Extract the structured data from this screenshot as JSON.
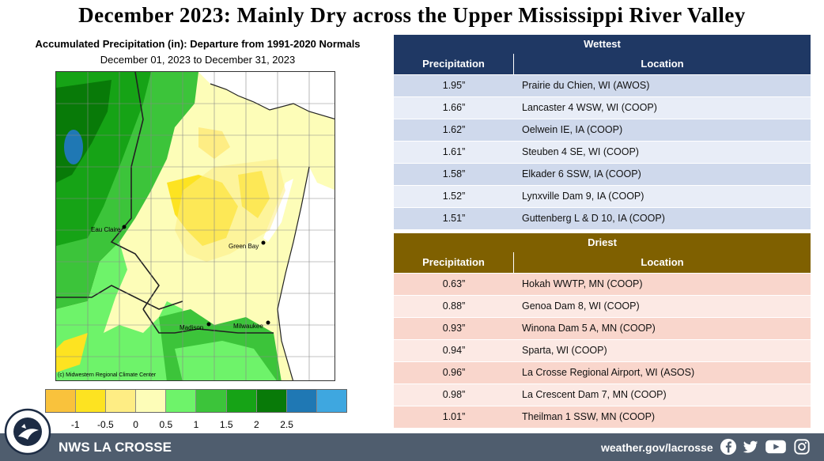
{
  "title": "December 2023:  Mainly Dry across the Upper Mississippi River Valley",
  "map": {
    "title": "Accumulated Precipitation (in): Departure from 1991-2020 Normals",
    "date_range": "December 01, 2023 to December 31, 2023",
    "credit": "(c) Midwestern Regional Climate Center",
    "cities": [
      "Eau Claire",
      "Green Bay",
      "Madison",
      "Milwaukee"
    ],
    "legend_colors": [
      "#f9c23c",
      "#fde321",
      "#feed84",
      "#fdfdb8",
      "#6ef36a",
      "#3cc43a",
      "#16a316",
      "#087a08",
      "#1f78b4",
      "#3ea7e0"
    ],
    "legend_labels": [
      "-1",
      "-0.5",
      "0",
      "0.5",
      "1",
      "1.5",
      "2",
      "2.5"
    ]
  },
  "wettest": {
    "title": "Wettest",
    "col_precip": "Precipitation",
    "col_location": "Location",
    "rows": [
      {
        "value": "1.95”",
        "location": "Prairie du Chien, WI (AWOS)"
      },
      {
        "value": "1.66”",
        "location": "Lancaster 4 WSW, WI (COOP)"
      },
      {
        "value": "1.62”",
        "location": "Oelwein IE, IA (COOP)"
      },
      {
        "value": "1.61”",
        "location": "Steuben 4 SE, WI (COOP)"
      },
      {
        "value": "1.58”",
        "location": "Elkader 6 SSW, IA (COOP)"
      },
      {
        "value": "1.52”",
        "location": "Lynxville Dam 9, IA (COOP)"
      },
      {
        "value": "1.51”",
        "location": "Guttenberg L & D  10, IA (COOP)"
      }
    ]
  },
  "driest": {
    "title": "Driest",
    "col_precip": "Precipitation",
    "col_location": "Location",
    "rows": [
      {
        "value": "0.63”",
        "location": "Hokah WWTP, MN (COOP)"
      },
      {
        "value": "0.88”",
        "location": "Genoa Dam 8, WI (COOP)"
      },
      {
        "value": "0.93”",
        "location": "Winona Dam 5 A, MN (COOP)"
      },
      {
        "value": "0.94”",
        "location": "Sparta, WI (COOP)"
      },
      {
        "value": "0.96”",
        "location": "La Crosse Regional Airport, WI (ASOS)"
      },
      {
        "value": "0.98”",
        "location": "La Crescent Dam 7, MN (COOP)"
      },
      {
        "value": "1.01”",
        "location": "Theilman 1 SSW, MN (COOP)"
      }
    ]
  },
  "footer": {
    "office": "NWS LA CROSSE",
    "url": "weather.gov/lacrosse",
    "social_icons": [
      "facebook-icon",
      "twitter-icon",
      "youtube-icon",
      "instagram-icon"
    ],
    "logo_text": "NATIONAL WEATHER SERVICE LA CROSSE, WI"
  }
}
